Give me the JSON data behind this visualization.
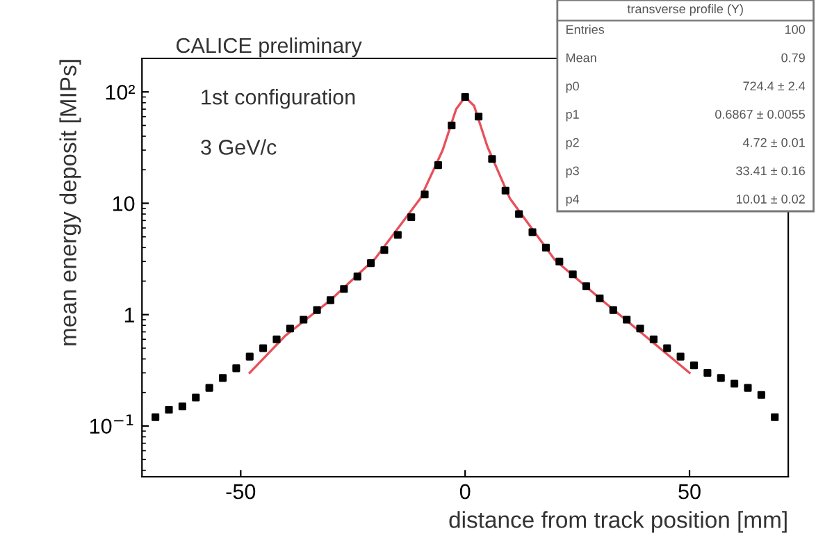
{
  "chart_data": {
    "type": "scatter",
    "title": "CALICE preliminary",
    "xlabel": "distance from track position [mm]",
    "ylabel": "mean energy deposit [MIPs]",
    "annotations": [
      "1st configuration",
      "3 GeV/c",
      "transverse profile (Y)",
      "Entries",
      "100",
      "Mean",
      "0.79",
      "p0",
      "724.4 ± 2.4",
      "p1",
      "0.6867 ± 0.0055",
      "p2",
      "4.72 ± 0.01",
      "p3",
      "33.41 ± 0.16",
      "p4",
      "10.01 ± 0.02"
    ],
    "log": "y",
    "xlim": [
      -72,
      72
    ],
    "ylim": [
      0.035,
      200
    ],
    "xticks": [
      -50,
      0,
      50
    ],
    "yticks": [
      {
        "value": 0.1,
        "label": "10$^{−1}$"
      },
      1,
      10,
      {
        "value": 100,
        "label": "10²"
      }
    ],
    "grid": false,
    "series": [
      {
        "marker": "square",
        "color": "#000000",
        "x": [
          -69,
          -66,
          -63,
          -60,
          -57,
          -54,
          -51,
          -48,
          -45,
          -42,
          -39,
          -36,
          -33,
          -30,
          -27,
          -24,
          -21,
          -18,
          -15,
          -12,
          -9,
          -6,
          -3,
          0,
          3,
          6,
          9,
          12,
          15,
          18,
          21,
          24,
          27,
          30,
          33,
          36,
          39,
          42,
          45,
          48,
          51,
          54,
          57,
          60,
          63,
          66,
          69
        ],
        "values": [
          0.12,
          0.14,
          0.15,
          0.18,
          0.22,
          0.27,
          0.33,
          0.42,
          0.5,
          0.6,
          0.75,
          0.9,
          1.1,
          1.35,
          1.7,
          2.2,
          2.9,
          3.8,
          5.2,
          7.5,
          12,
          22,
          50,
          90,
          60,
          25,
          13,
          8,
          5.5,
          4,
          3,
          2.3,
          1.8,
          1.4,
          1.1,
          0.9,
          0.75,
          0.6,
          0.5,
          0.42,
          0.35,
          0.3,
          0.27,
          0.24,
          0.22,
          0.19,
          0.12
        ]
      },
      {
        "type": "line",
        "marker": "none",
        "color": "#e8505a",
        "x": [
          -48,
          -40,
          -30,
          -20,
          -10,
          -5,
          -2,
          0,
          2,
          5,
          10,
          20,
          30,
          40,
          50
        ],
        "values": [
          0.3,
          0.65,
          1.35,
          3.2,
          11,
          30,
          70,
          90,
          75,
          32,
          11,
          3.1,
          1.4,
          0.65,
          0.3
        ]
      }
    ]
  }
}
